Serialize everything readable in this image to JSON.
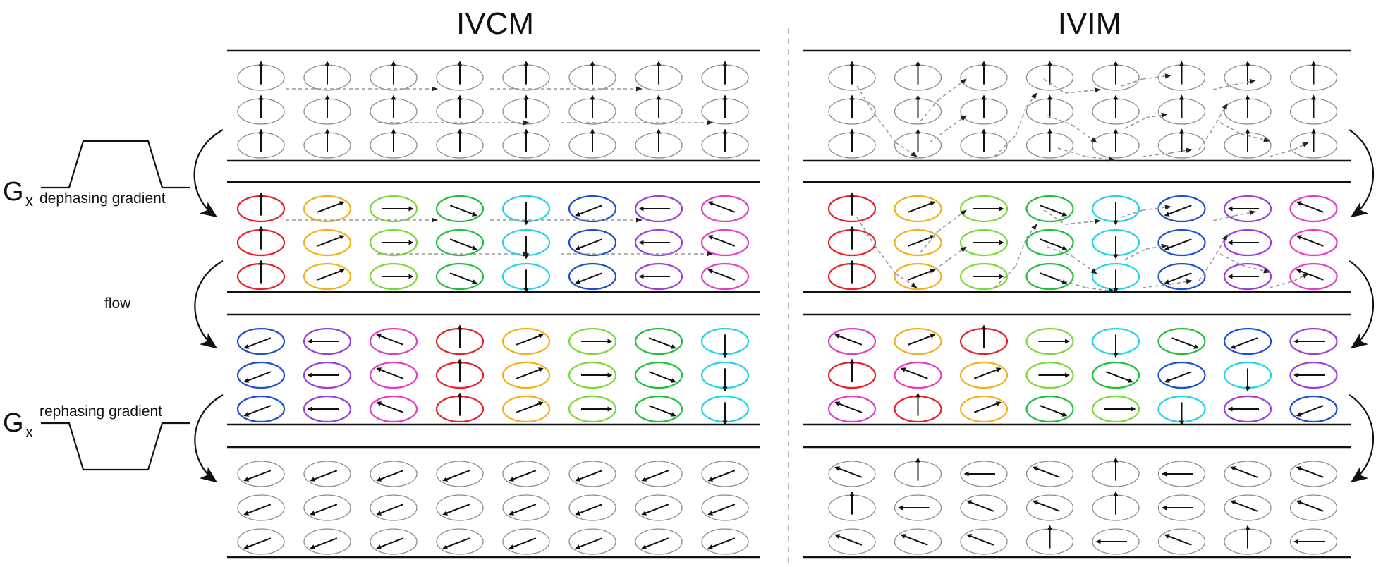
{
  "titles": {
    "left": "IVCM",
    "right": "IVIM"
  },
  "labels": {
    "gx_symbol": "G",
    "gx_subscript": "x",
    "dephasing": "dephasing gradient",
    "rephasing": "rephasing gradient",
    "flow": "flow"
  },
  "colors": {
    "gray": "#8c8c8c",
    "red": "#e8202a",
    "yellow": "#f2b01e",
    "lightgreen": "#7bd83a",
    "green": "#1fbf3c",
    "cyan": "#22d3e6",
    "blue": "#1c4fd0",
    "purple": "#9b3fd8",
    "magenta": "#e43cc4"
  },
  "stages": [
    {
      "name": "initial"
    },
    {
      "name": "after-dephasing"
    },
    {
      "name": "after-flow"
    },
    {
      "name": "after-rephasing"
    }
  ],
  "ivcm": {
    "stage_colors": [
      [
        "gray",
        "gray",
        "gray",
        "gray",
        "gray",
        "gray",
        "gray",
        "gray"
      ],
      [
        "red",
        "yellow",
        "lightgreen",
        "green",
        "cyan",
        "blue",
        "purple",
        "magenta"
      ],
      [
        "blue",
        "purple",
        "magenta",
        "red",
        "yellow",
        "lightgreen",
        "green",
        "cyan"
      ],
      [
        "gray",
        "gray",
        "gray",
        "gray",
        "gray",
        "gray",
        "gray",
        "gray"
      ]
    ],
    "stage_angles_deg": [
      [
        0,
        0,
        0,
        0,
        0,
        0,
        0,
        0
      ],
      [
        0,
        60,
        90,
        120,
        180,
        240,
        270,
        300
      ],
      [
        240,
        270,
        300,
        0,
        60,
        90,
        120,
        180
      ],
      [
        240,
        240,
        240,
        240,
        240,
        240,
        240,
        240
      ]
    ]
  },
  "ivim": {
    "stage_colors": [
      [
        [
          "gray",
          "gray",
          "gray",
          "gray",
          "gray",
          "gray",
          "gray",
          "gray"
        ],
        [
          "gray",
          "gray",
          "gray",
          "gray",
          "gray",
          "gray",
          "gray",
          "gray"
        ],
        [
          "gray",
          "gray",
          "gray",
          "gray",
          "gray",
          "gray",
          "gray",
          "gray"
        ]
      ],
      [
        [
          "red",
          "yellow",
          "lightgreen",
          "green",
          "cyan",
          "blue",
          "purple",
          "magenta"
        ],
        [
          "red",
          "yellow",
          "lightgreen",
          "green",
          "cyan",
          "blue",
          "purple",
          "magenta"
        ],
        [
          "red",
          "yellow",
          "lightgreen",
          "green",
          "cyan",
          "blue",
          "purple",
          "magenta"
        ]
      ],
      [
        [
          "magenta",
          "yellow",
          "red",
          "lightgreen",
          "cyan",
          "green",
          "blue",
          "purple"
        ],
        [
          "red",
          "magenta",
          "yellow",
          "lightgreen",
          "green",
          "blue",
          "cyan",
          "purple"
        ],
        [
          "magenta",
          "red",
          "yellow",
          "green",
          "lightgreen",
          "cyan",
          "purple",
          "blue"
        ]
      ],
      [
        [
          "gray",
          "gray",
          "gray",
          "gray",
          "gray",
          "gray",
          "gray",
          "gray"
        ],
        [
          "gray",
          "gray",
          "gray",
          "gray",
          "gray",
          "gray",
          "gray",
          "gray"
        ],
        [
          "gray",
          "gray",
          "gray",
          "gray",
          "gray",
          "gray",
          "gray",
          "gray"
        ]
      ]
    ],
    "stage_angles_deg": [
      [
        [
          0,
          0,
          0,
          0,
          0,
          0,
          0,
          0
        ],
        [
          0,
          0,
          0,
          0,
          0,
          0,
          0,
          0
        ],
        [
          0,
          0,
          0,
          0,
          0,
          0,
          0,
          0
        ]
      ],
      [
        [
          0,
          60,
          90,
          120,
          180,
          240,
          270,
          300
        ],
        [
          0,
          60,
          90,
          120,
          180,
          240,
          270,
          300
        ],
        [
          0,
          60,
          90,
          120,
          180,
          240,
          270,
          300
        ]
      ],
      [
        [
          300,
          60,
          0,
          90,
          180,
          120,
          240,
          270
        ],
        [
          0,
          300,
          60,
          90,
          120,
          240,
          180,
          270
        ],
        [
          300,
          0,
          60,
          120,
          90,
          180,
          270,
          240
        ]
      ],
      [
        [
          300,
          0,
          270,
          300,
          0,
          270,
          300,
          300
        ],
        [
          0,
          270,
          300,
          300,
          0,
          270,
          300,
          300
        ],
        [
          300,
          300,
          300,
          0,
          270,
          300,
          0,
          270
        ]
      ]
    ]
  }
}
